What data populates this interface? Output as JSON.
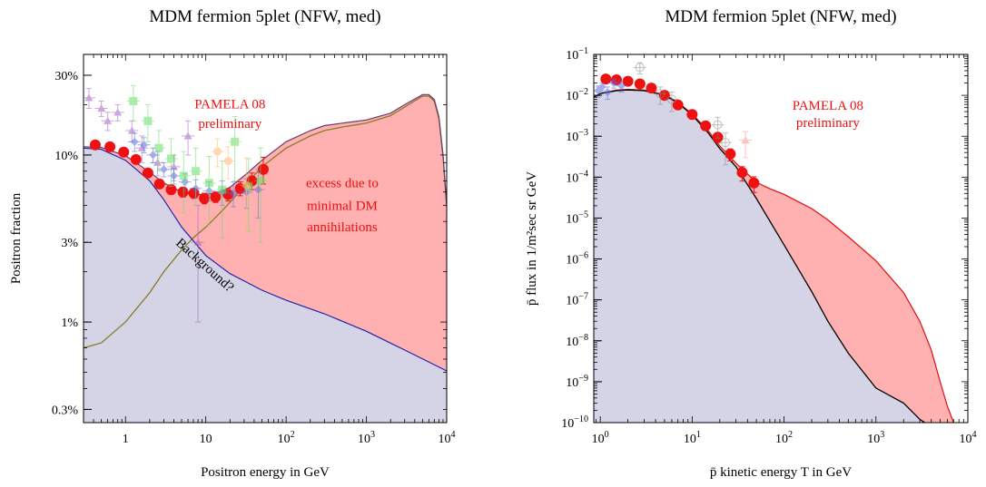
{
  "colors": {
    "background_fill": "#d4d4e6",
    "excess_fill": "#ffb1b1",
    "excess_line": "#e01010",
    "background_line": "#2424a8",
    "dm_line": "#8a7a2a",
    "pbar_background_line": "#000000",
    "pamela": "#ee1111",
    "purple_data": "#a060c0",
    "blue_data": "#5a6ae0",
    "green_data": "#66dd66",
    "orange_data": "#ffb870",
    "gray_data": "#888888"
  },
  "chart_data": [
    {
      "type": "area",
      "title": "MDM fermion 5plet (NFW, med)",
      "xlabel": "Positron energy in GeV",
      "ylabel": "Positron fraction",
      "xscale": "log",
      "yscale": "log",
      "xlim": [
        0.3,
        10000
      ],
      "ylim": [
        0.0025,
        0.4
      ],
      "xticks": [
        {
          "value": 1,
          "label": "1"
        },
        {
          "value": 10,
          "label": "10"
        },
        {
          "value": 100,
          "label": "10",
          "sup": "2"
        },
        {
          "value": 1000,
          "label": "10",
          "sup": "3"
        },
        {
          "value": 10000,
          "label": "10",
          "sup": "4"
        }
      ],
      "yticks": [
        {
          "value": 0.003,
          "label": "0.3%"
        },
        {
          "value": 0.01,
          "label": "1%"
        },
        {
          "value": 0.03,
          "label": "3%"
        },
        {
          "value": 0.1,
          "label": "10%"
        },
        {
          "value": 0.3,
          "label": "30%"
        }
      ],
      "annotations": [
        {
          "text": "PAMELA 08",
          "x": 20,
          "y": 0.19,
          "color": "#ee1111"
        },
        {
          "text": "preliminary",
          "x": 20,
          "y": 0.145,
          "color": "#ee1111"
        },
        {
          "text": "excess due to",
          "x": 500,
          "y": 0.064,
          "color": "#ee1111"
        },
        {
          "text": "minimal DM",
          "x": 500,
          "y": 0.047,
          "color": "#ee1111"
        },
        {
          "text": "annihilations",
          "x": 500,
          "y": 0.035,
          "color": "#ee1111"
        },
        {
          "text": "Background?",
          "x": 9,
          "y": 0.021,
          "color": "#000000",
          "rotate": 42
        }
      ],
      "series": [
        {
          "role": "background",
          "x": [
            0.3,
            0.5,
            1,
            2,
            3,
            5,
            10,
            20,
            50,
            100,
            300,
            1000,
            3000,
            10000
          ],
          "values": [
            0.11,
            0.108,
            0.093,
            0.07,
            0.054,
            0.037,
            0.025,
            0.0195,
            0.0155,
            0.0135,
            0.0112,
            0.0088,
            0.0068,
            0.0051
          ]
        },
        {
          "role": "total",
          "x": [
            0.3,
            0.5,
            1,
            2,
            3,
            5,
            7,
            10,
            15,
            20,
            30,
            50,
            100,
            200,
            300,
            500,
            1000,
            2000,
            3000,
            5000,
            6000,
            7000,
            8000,
            9000,
            10000
          ],
          "values": [
            0.112,
            0.111,
            0.099,
            0.079,
            0.068,
            0.06,
            0.058,
            0.058,
            0.06,
            0.064,
            0.075,
            0.093,
            0.12,
            0.14,
            0.15,
            0.155,
            0.162,
            0.178,
            0.2,
            0.23,
            0.23,
            0.215,
            0.17,
            0.1,
            0.05
          ]
        },
        {
          "role": "dm_signal",
          "x": [
            0.3,
            0.5,
            1,
            2,
            3,
            5,
            7,
            10,
            15,
            20,
            30,
            50,
            100,
            200,
            300,
            500,
            1000,
            2000,
            3000,
            5000,
            6000,
            7000,
            8000,
            9000,
            10000
          ],
          "values": [
            0.007,
            0.0075,
            0.01,
            0.015,
            0.02,
            0.027,
            0.032,
            0.037,
            0.045,
            0.052,
            0.065,
            0.085,
            0.11,
            0.13,
            0.14,
            0.147,
            0.155,
            0.172,
            0.194,
            0.225,
            0.225,
            0.21,
            0.165,
            0.098,
            0.049
          ]
        }
      ],
      "data_points": [
        {
          "name": "PAMELA 08",
          "color": "#ee1111",
          "marker": "circle",
          "x": [
            0.42,
            0.64,
            0.95,
            1.35,
            1.9,
            2.65,
            3.7,
            5.2,
            7.1,
            9.6,
            13.2,
            19,
            26.8,
            37.5,
            52
          ],
          "y": [
            0.115,
            0.112,
            0.104,
            0.094,
            0.078,
            0.067,
            0.062,
            0.06,
            0.059,
            0.055,
            0.056,
            0.058,
            0.063,
            0.07,
            0.082
          ],
          "err": [
            0.005,
            0.005,
            0.005,
            0.005,
            0.004,
            0.004,
            0.004,
            0.004,
            0.004,
            0.004,
            0.004,
            0.005,
            0.006,
            0.008,
            0.015
          ]
        },
        {
          "name": "purple",
          "color": "#a060c0",
          "marker": "triangle",
          "x": [
            0.35,
            0.5,
            0.6,
            0.8,
            1.2,
            1.6,
            2.5,
            4,
            6,
            8
          ],
          "y": [
            0.22,
            0.19,
            0.16,
            0.18,
            0.14,
            0.11,
            0.09,
            0.085,
            0.13,
            0.03
          ],
          "err": [
            0.03,
            0.02,
            0.02,
            0.02,
            0.02,
            0.02,
            0.015,
            0.015,
            0.03,
            0.02
          ]
        },
        {
          "name": "blue",
          "color": "#5a6ae0",
          "marker": "diamond",
          "x": [
            1.3,
            1.7,
            2.2,
            3,
            4,
            5.5,
            7.5,
            11,
            16,
            22,
            32,
            45
          ],
          "y": [
            0.12,
            0.115,
            0.1,
            0.082,
            0.075,
            0.069,
            0.063,
            0.061,
            0.06,
            0.059,
            0.06,
            0.062
          ],
          "err": [
            0.015,
            0.012,
            0.01,
            0.008,
            0.008,
            0.008,
            0.008,
            0.008,
            0.01,
            0.01,
            0.012,
            0.02
          ]
        },
        {
          "name": "green",
          "color": "#66dd66",
          "marker": "square",
          "x": [
            1.25,
            1.9,
            2.6,
            3.7,
            5.3,
            7.5,
            11,
            16,
            23,
            34,
            48
          ],
          "y": [
            0.21,
            0.16,
            0.11,
            0.095,
            0.075,
            0.08,
            0.068,
            0.062,
            0.12,
            0.065,
            0.07
          ],
          "err": [
            0.05,
            0.04,
            0.03,
            0.03,
            0.03,
            0.03,
            0.03,
            0.03,
            0.05,
            0.03,
            0.04
          ]
        },
        {
          "name": "orange",
          "color": "#ffb870",
          "marker": "circle",
          "x": [
            14,
            19,
            32
          ],
          "y": [
            0.105,
            0.092,
            0.066
          ],
          "err": [
            0.02,
            0.02,
            0.03
          ]
        }
      ]
    },
    {
      "type": "area",
      "title": "MDM fermion 5plet (NFW, med)",
      "xlabel": "p̄ kinetic energy T in GeV",
      "ylabel": "p̄ flux in 1/m²sec sr GeV",
      "xscale": "log",
      "yscale": "log",
      "xlim": [
        0.85,
        10000
      ],
      "ylim": [
        1e-10,
        0.1
      ],
      "xticks": [
        {
          "value": 1,
          "label": "10",
          "sup": "0"
        },
        {
          "value": 10,
          "label": "10",
          "sup": "1"
        },
        {
          "value": 100,
          "label": "10",
          "sup": "2"
        },
        {
          "value": 1000,
          "label": "10",
          "sup": "3"
        },
        {
          "value": 10000,
          "label": "10",
          "sup": "4"
        }
      ],
      "yticks": [
        {
          "value": 1e-10,
          "label": "10",
          "sup": "−10"
        },
        {
          "value": 1e-09,
          "label": "10",
          "sup": "−9"
        },
        {
          "value": 1e-08,
          "label": "10",
          "sup": "−8"
        },
        {
          "value": 1e-07,
          "label": "10",
          "sup": "−7"
        },
        {
          "value": 1e-06,
          "label": "10",
          "sup": "−6"
        },
        {
          "value": 1e-05,
          "label": "10",
          "sup": "−5"
        },
        {
          "value": 0.0001,
          "label": "10",
          "sup": "−4"
        },
        {
          "value": 0.001,
          "label": "10",
          "sup": "−3"
        },
        {
          "value": 0.01,
          "label": "10",
          "sup": "−2"
        },
        {
          "value": 0.1,
          "label": "10",
          "sup": "−1"
        }
      ],
      "annotations": [
        {
          "text": "PAMELA 08",
          "x": 300,
          "y": 0.0045,
          "color": "#ee1111"
        },
        {
          "text": "preliminary",
          "x": 300,
          "y": 0.0017,
          "color": "#ee1111"
        }
      ],
      "series": [
        {
          "role": "background",
          "x": [
            0.85,
            1,
            1.5,
            2,
            3,
            5,
            7,
            10,
            15,
            20,
            30,
            50,
            100,
            200,
            300,
            500,
            1000,
            2000,
            3000,
            3400
          ],
          "values": [
            0.009,
            0.011,
            0.013,
            0.0135,
            0.013,
            0.01,
            0.0065,
            0.0033,
            0.0012,
            0.0005,
            0.00018,
            3e-05,
            2.2e-06,
            1.6e-07,
            3e-08,
            5e-09,
            7e-10,
            3e-10,
            1.2e-10,
            1e-10
          ]
        },
        {
          "role": "total",
          "x": [
            0.85,
            1,
            1.5,
            2,
            3,
            5,
            7,
            10,
            15,
            20,
            30,
            50,
            70,
            100,
            200,
            300,
            500,
            1000,
            2000,
            3000,
            4000,
            5000,
            6000,
            7000
          ],
          "values": [
            0.009,
            0.011,
            0.0135,
            0.014,
            0.0135,
            0.0105,
            0.0068,
            0.0035,
            0.00135,
            0.00058,
            0.00022,
            7.5e-05,
            5.2e-05,
            3.8e-05,
            1.7e-05,
            9e-06,
            3.5e-06,
            9e-07,
            1.5e-07,
            3e-08,
            6e-09,
            1e-09,
            2.5e-10,
            1e-10
          ]
        }
      ],
      "data_points": [
        {
          "name": "PAMELA 08",
          "color": "#ee1111",
          "marker": "circle",
          "x": [
            1.15,
            1.5,
            2,
            2.7,
            3.6,
            5,
            7,
            10,
            14,
            19,
            26,
            35,
            47
          ],
          "y": [
            0.025,
            0.024,
            0.022,
            0.019,
            0.015,
            0.01,
            0.0058,
            0.0034,
            0.0018,
            0.00095,
            0.00037,
            0.00013,
            7.2e-05
          ],
          "err": [
            0.004,
            0.003,
            0.003,
            0.003,
            0.003,
            0.002,
            0.0012,
            0.0007,
            0.0004,
            0.00025,
            0.00012,
            5e-05,
            3e-05
          ]
        },
        {
          "name": "blue",
          "color": "#5a6ae0",
          "marker": "diamond",
          "x": [
            0.95,
            1.05,
            1.2,
            1.4,
            1.7
          ],
          "y": [
            0.013,
            0.016,
            0.012,
            0.02,
            0.017
          ],
          "err": [
            0.004,
            0.004,
            0.004,
            0.005,
            0.005
          ]
        },
        {
          "name": "gray",
          "color": "#888888",
          "marker": "open-circle",
          "x": [
            2.7,
            4.5,
            6,
            19,
            23
          ],
          "y": [
            0.048,
            0.011,
            0.008,
            0.0019,
            0.0007
          ],
          "err": [
            0.015,
            0.005,
            0.004,
            0.001,
            0.0005
          ]
        },
        {
          "name": "pink",
          "color": "#ff9090",
          "marker": "triangle",
          "x": [
            38
          ],
          "y": [
            0.0008
          ],
          "err": [
            0.0005
          ]
        }
      ]
    }
  ]
}
